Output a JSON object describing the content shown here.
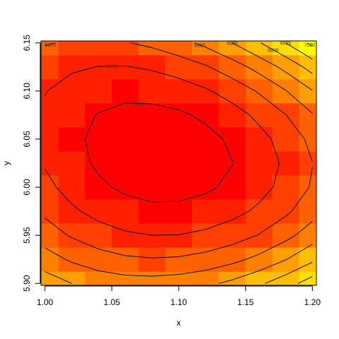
{
  "chart_data": {
    "type": "heatmap",
    "xlabel": "x",
    "ylabel": "y",
    "x": [
      1.0,
      1.02,
      1.04,
      1.06,
      1.08,
      1.1,
      1.12,
      1.14,
      1.16,
      1.18,
      1.2
    ],
    "y": [
      5.9,
      5.925,
      5.95,
      5.975,
      6.0,
      6.025,
      6.05,
      6.075,
      6.1,
      6.125,
      6.15
    ],
    "z": [
      [
        6987.7,
        6985.0,
        6983.2,
        6982.2,
        6982.0,
        6982.6,
        6983.9,
        6986.1,
        6989.1,
        6992.9,
        6997.4
      ],
      [
        6982.2,
        6979.3,
        6977.1,
        6975.8,
        6975.3,
        6975.6,
        6976.7,
        6978.6,
        6981.3,
        6984.8,
        6989.0
      ],
      [
        6977.6,
        6974.5,
        6972.2,
        6970.7,
        6970.0,
        6970.1,
        6971.0,
        6972.7,
        6975.2,
        6978.5,
        6982.6
      ],
      [
        6974.0,
        6970.8,
        6968.4,
        6966.8,
        6966.0,
        6966.1,
        6966.9,
        6968.5,
        6970.9,
        6974.1,
        6978.1
      ],
      [
        6971.3,
        6968.2,
        6965.8,
        6964.2,
        6963.4,
        6963.4,
        6964.3,
        6965.9,
        6968.3,
        6971.5,
        6975.5
      ],
      [
        6969.6,
        6966.6,
        6964.3,
        6962.8,
        6962.2,
        6962.3,
        6963.2,
        6964.9,
        6967.5,
        6970.8,
        6974.9
      ],
      [
        6968.9,
        6966.0,
        6964.0,
        6962.7,
        6962.3,
        6962.6,
        6963.7,
        6965.7,
        6968.4,
        6971.9,
        6976.3
      ],
      [
        6969.1,
        6966.5,
        6964.8,
        6963.8,
        6963.7,
        6964.3,
        6965.8,
        6968.0,
        6971.1,
        6974.9,
        6979.6
      ],
      [
        6970.2,
        6968.1,
        6966.8,
        6966.2,
        6966.5,
        6967.5,
        6969.4,
        6972.0,
        6975.5,
        6979.8,
        6984.8
      ],
      [
        6972.3,
        6970.7,
        6969.9,
        6969.8,
        6970.6,
        6972.2,
        6974.5,
        6977.7,
        6981.7,
        6986.4,
        6992.0
      ],
      [
        6975.4,
        6974.4,
        6974.1,
        6974.7,
        6976.1,
        6978.3,
        6981.2,
        6985.0,
        6989.6,
        6995.0,
        7001.2
      ]
    ],
    "levels": [
      6965,
      6970,
      6975,
      6980,
      6985,
      6990,
      6995,
      7000
    ],
    "zlim": [
      6962,
      7002
    ],
    "colors": [
      "#FF0000",
      "#FF2000",
      "#FF4000",
      "#FF6000",
      "#FF8000",
      "#FF9F00",
      "#FFBF00",
      "#FFDF00",
      "#FFFF00"
    ],
    "contour_color": "#000000",
    "xlim": [
      0.997,
      1.203
    ],
    "ylim": [
      5.898,
      6.152
    ],
    "xticks": [
      {
        "value": 1.0,
        "label": "1.00"
      },
      {
        "value": 1.05,
        "label": "1.05"
      },
      {
        "value": 1.1,
        "label": "1.10"
      },
      {
        "value": 1.15,
        "label": "1.15"
      },
      {
        "value": 1.2,
        "label": "1.20"
      }
    ],
    "yticks": [
      {
        "value": 5.9,
        "label": "5.90"
      },
      {
        "value": 5.95,
        "label": "5.95"
      },
      {
        "value": 6.0,
        "label": "6.00"
      },
      {
        "value": 6.05,
        "label": "6.05"
      },
      {
        "value": 6.1,
        "label": "6.10"
      },
      {
        "value": 6.15,
        "label": "6.15"
      }
    ]
  }
}
